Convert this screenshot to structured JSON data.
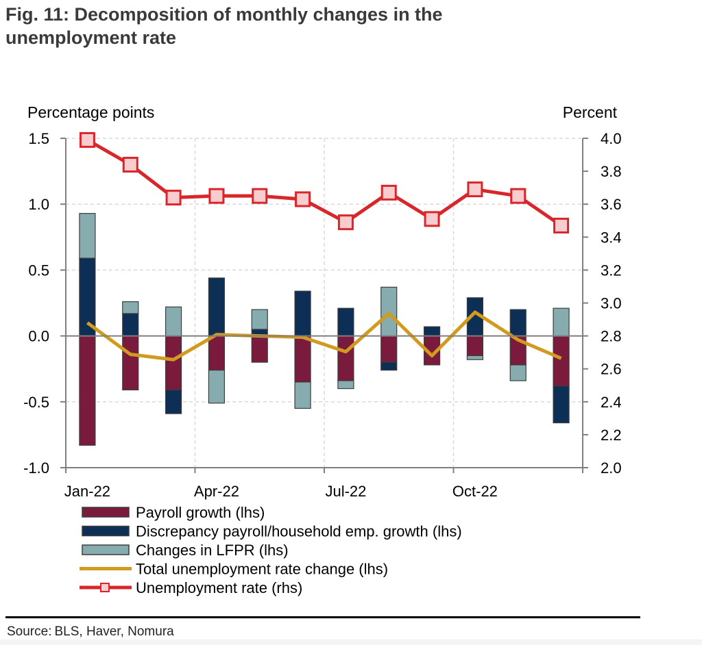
{
  "figure": {
    "title_line1": "Fig. 11: Decomposition of monthly changes in the",
    "title_line2": "unemployment rate",
    "source_label": "Source:",
    "source_text": "BLS, Haver, Nomura"
  },
  "colors": {
    "payroll": "#7a1a3c",
    "discrepancy": "#0e2f55",
    "lfpr": "#87acb0",
    "total": "#d29a1e",
    "urate": "#d8262a",
    "marker_fill": "#f9cdd0",
    "grid": "#d9d9d9",
    "axis": "#7f7f7f"
  },
  "chart_data": {
    "type": "bar",
    "title": "Fig. 11: Decomposition of monthly changes in the unemployment rate",
    "ylabel": "Percentage points",
    "y2label": "Percent",
    "ylim": [
      -1.0,
      1.5
    ],
    "y2lim": [
      2.0,
      4.0
    ],
    "yticks": [
      "1.5",
      "1.0",
      "0.5",
      "0.0",
      "-0.5",
      "-1.0"
    ],
    "y2ticks": [
      "4.0",
      "3.8",
      "3.6",
      "3.4",
      "3.2",
      "3.0",
      "2.8",
      "2.6",
      "2.4",
      "2.2",
      "2.0"
    ],
    "xtick_labels": [
      "Jan-22",
      "Apr-22",
      "Jul-22",
      "Oct-22"
    ],
    "categories": [
      "Jan-22",
      "Feb-22",
      "Mar-22",
      "Apr-22",
      "May-22",
      "Jun-22",
      "Jul-22",
      "Aug-22",
      "Sep-22",
      "Oct-22",
      "Nov-22",
      "Dec-22"
    ],
    "series": [
      {
        "name": "Payroll growth (lhs)",
        "axis": "left",
        "type": "stacked-bar",
        "values": [
          -0.83,
          -0.41,
          -0.41,
          -0.26,
          -0.2,
          -0.35,
          -0.34,
          -0.2,
          -0.22,
          -0.15,
          -0.22,
          -0.38
        ]
      },
      {
        "name": "Discrepancy payroll/household emp. growth (lhs)",
        "axis": "left",
        "type": "stacked-bar",
        "values": [
          0.59,
          0.17,
          -0.18,
          0.44,
          0.05,
          0.34,
          0.21,
          -0.06,
          0.07,
          0.29,
          0.2,
          -0.28
        ]
      },
      {
        "name": "Changes in LFPR (lhs)",
        "axis": "left",
        "type": "stacked-bar",
        "values": [
          0.34,
          0.09,
          0.22,
          -0.25,
          0.15,
          -0.2,
          -0.06,
          0.37,
          0.0,
          -0.03,
          -0.12,
          0.21
        ]
      },
      {
        "name": "Total unemployment rate change (lhs)",
        "axis": "left",
        "type": "line",
        "values": [
          0.1,
          -0.14,
          -0.18,
          0.01,
          0.0,
          -0.01,
          -0.12,
          0.17,
          -0.15,
          0.18,
          -0.03,
          -0.17
        ]
      },
      {
        "name": "Unemployment rate (rhs)",
        "axis": "right",
        "type": "line-marker",
        "values": [
          3.99,
          3.84,
          3.64,
          3.65,
          3.65,
          3.63,
          3.49,
          3.67,
          3.51,
          3.69,
          3.65,
          3.47
        ]
      }
    ],
    "legend": [
      {
        "label": "Payroll growth (lhs)",
        "kind": "bar",
        "key": "payroll"
      },
      {
        "label": "Discrepancy payroll/household emp. growth (lhs)",
        "kind": "bar",
        "key": "discrepancy"
      },
      {
        "label": "Changes in LFPR (lhs)",
        "kind": "bar",
        "key": "lfpr"
      },
      {
        "label": "Total unemployment rate change (lhs)",
        "kind": "line",
        "key": "total"
      },
      {
        "label": "Unemployment rate (rhs)",
        "kind": "line-marker",
        "key": "urate"
      }
    ],
    "legend_position": "bottom"
  }
}
